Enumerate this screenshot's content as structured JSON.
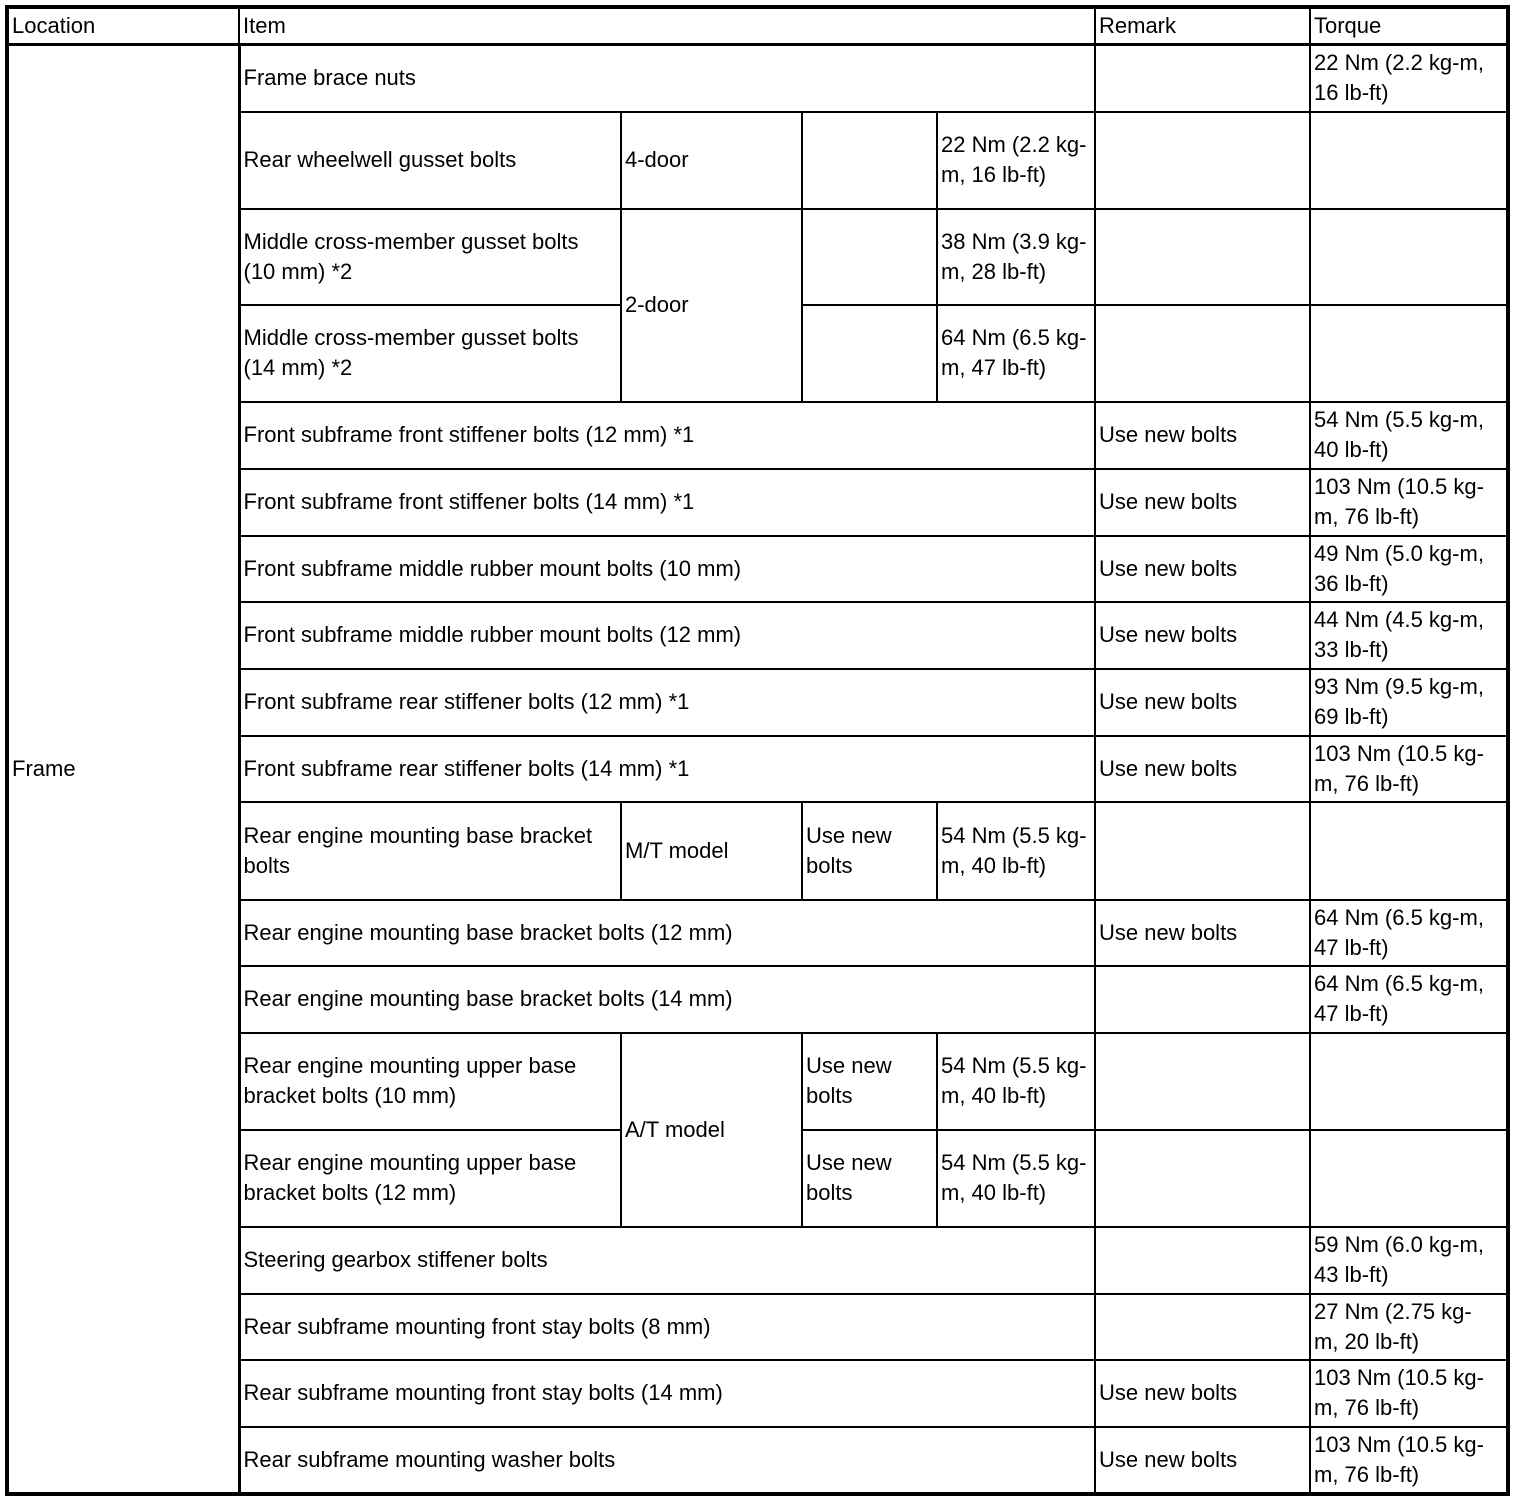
{
  "header": {
    "location": "Location",
    "item": "Item",
    "remark": "Remark",
    "torque": "Torque"
  },
  "location": "Frame",
  "rows": [
    {
      "item": "Frame brace nuts",
      "remark": "",
      "torque": "22 Nm (2.2 kg-m, 16 lb-ft)"
    },
    {
      "item": "Rear wheelwell gusset bolts",
      "variant": "4-door",
      "note": "",
      "spec": "22 Nm (2.2 kg-m, 16 lb-ft)"
    },
    {
      "item": "Middle cross-member gusset bolts (10 mm) *2",
      "variant": "2-door",
      "note": "",
      "spec": "38 Nm (3.9 kg-m, 28 lb-ft)"
    },
    {
      "item": "Middle cross-member gusset bolts (14 mm) *2",
      "note": "",
      "spec": "64 Nm (6.5 kg-m, 47 lb-ft)"
    },
    {
      "item": "Front subframe front stiffener bolts (12 mm) *1",
      "remark": "Use new bolts",
      "torque": "54 Nm (5.5 kg-m, 40 lb-ft)"
    },
    {
      "item": "Front subframe front stiffener bolts (14 mm) *1",
      "remark": "Use new bolts",
      "torque": "103 Nm (10.5 kg-m, 76 lb-ft)"
    },
    {
      "item": "Front subframe middle rubber mount bolts (10 mm)",
      "remark": "Use new bolts",
      "torque": "49 Nm (5.0 kg-m, 36 lb-ft)"
    },
    {
      "item": "Front subframe middle rubber mount bolts (12 mm)",
      "remark": "Use new bolts",
      "torque": "44 Nm (4.5 kg-m, 33 lb-ft)"
    },
    {
      "item": "Front subframe rear stiffener bolts (12 mm) *1",
      "remark": "Use new bolts",
      "torque": "93 Nm (9.5 kg-m, 69 lb-ft)"
    },
    {
      "item": "Front subframe rear stiffener bolts (14 mm) *1",
      "remark": "Use new bolts",
      "torque": "103 Nm (10.5 kg-m, 76 lb-ft)"
    },
    {
      "item": "Rear engine mounting base bracket bolts",
      "variant": "M/T model",
      "note": "Use new bolts",
      "spec": "54 Nm (5.5 kg-m, 40 lb-ft)"
    },
    {
      "item": "Rear engine mounting base bracket bolts (12 mm)",
      "remark": "Use new bolts",
      "torque": "64 Nm (6.5 kg-m, 47 lb-ft)"
    },
    {
      "item": "Rear engine mounting base bracket bolts (14 mm)",
      "remark": "",
      "torque": "64 Nm (6.5 kg-m, 47 lb-ft)"
    },
    {
      "item": "Rear engine mounting upper base bracket bolts (10 mm)",
      "variant": "A/T model",
      "note": "Use new bolts",
      "spec": "54 Nm (5.5 kg-m, 40 lb-ft)"
    },
    {
      "item": "Rear engine mounting upper base bracket bolts (12 mm)",
      "note": "Use new bolts",
      "spec": "54 Nm (5.5 kg-m, 40 lb-ft)"
    },
    {
      "item": "Steering gearbox stiffener bolts",
      "remark": "",
      "torque": "59 Nm (6.0 kg-m, 43 lb-ft)"
    },
    {
      "item": "Rear subframe mounting front stay bolts (8 mm)",
      "remark": "",
      "torque": "27 Nm (2.75 kg-m, 20 lb-ft)"
    },
    {
      "item": "Rear subframe mounting front stay bolts (14 mm)",
      "remark": "Use new bolts",
      "torque": "103 Nm (10.5 kg-m, 76 lb-ft)"
    },
    {
      "item": "Rear subframe mounting washer bolts",
      "remark": "Use new bolts",
      "torque": "103 Nm (10.5 kg-m, 76 lb-ft)"
    }
  ]
}
